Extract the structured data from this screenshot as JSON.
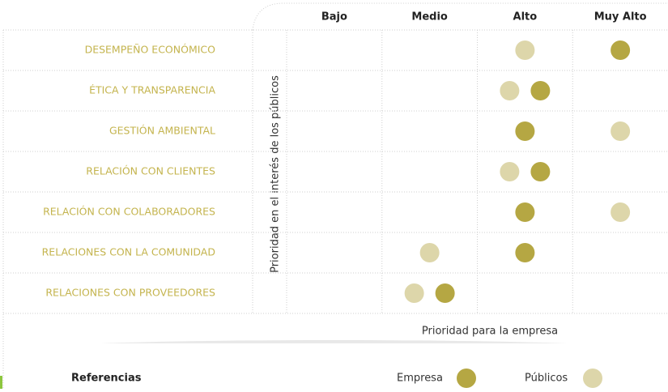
{
  "matrix": {
    "columns": [
      "Bajo",
      "Medio",
      "Alto",
      "Muy Alto"
    ],
    "y_axis_label": "Prioridad en el interés de los públicos",
    "x_axis_label": "Prioridad para la empresa",
    "rows": [
      {
        "label": "DESEMPEÑO ECONÓMICO",
        "empresa": 3,
        "publicos": 2
      },
      {
        "label": "ÉTICA Y TRANSPARENCIA",
        "empresa": 2,
        "publicos": 2
      },
      {
        "label": "GESTIÓN AMBIENTAL",
        "empresa": 2,
        "publicos": 3
      },
      {
        "label": "RELACIÓN CON CLIENTES",
        "empresa": 2,
        "publicos": 2
      },
      {
        "label": "RELACIÓN CON COLABORADORES",
        "empresa": 2,
        "publicos": 3
      },
      {
        "label": "RELACIONES CON LA COMUNIDAD",
        "empresa": 2,
        "publicos": 1
      },
      {
        "label": "RELACIONES CON PROVEEDORES",
        "empresa": 1,
        "publicos": 1
      }
    ],
    "empresa_color": "#b5a743",
    "publicos_color": "#ddd6aa"
  },
  "legend": {
    "title": "Referencias",
    "empresa": "Empresa",
    "publicos": "Públicos"
  }
}
